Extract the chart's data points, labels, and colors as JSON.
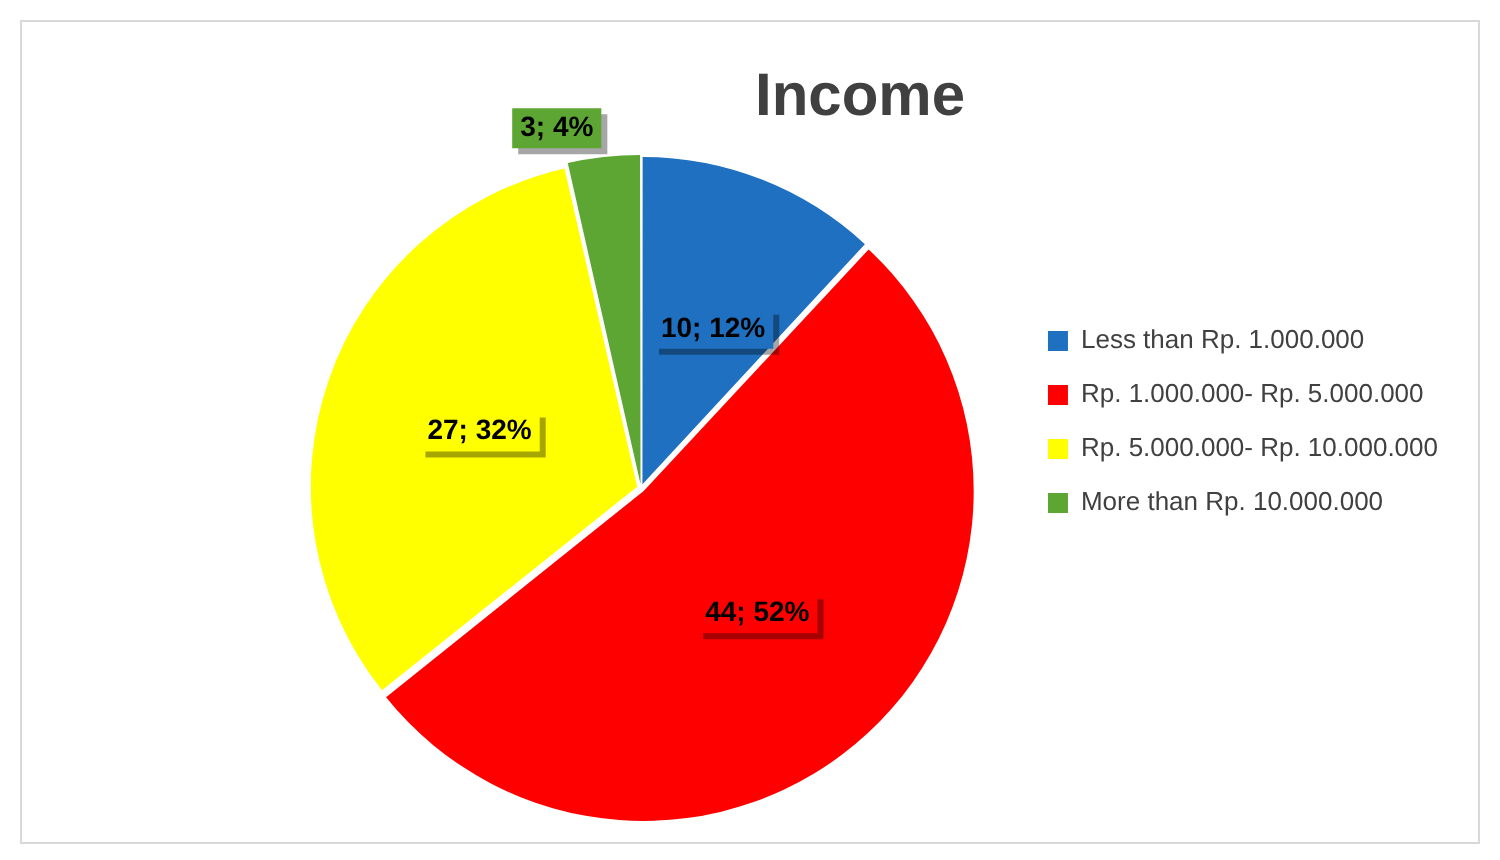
{
  "chart_data": {
    "type": "pie",
    "title": "Income",
    "categories": [
      "Less than Rp. 1.000.000",
      "Rp. 1.000.000- Rp. 5.000.000",
      "Rp. 5.000.000- Rp. 10.000.000",
      "More than Rp. 10.000.000"
    ],
    "values": [
      10,
      44,
      27,
      3
    ],
    "colors": [
      "#1f70c1",
      "#ff0000",
      "#ffff00",
      "#5ea633"
    ],
    "value_labels": [
      "10; 12%",
      "44; 52%",
      "27; 32%",
      "3; 4%"
    ],
    "legend": "right"
  }
}
